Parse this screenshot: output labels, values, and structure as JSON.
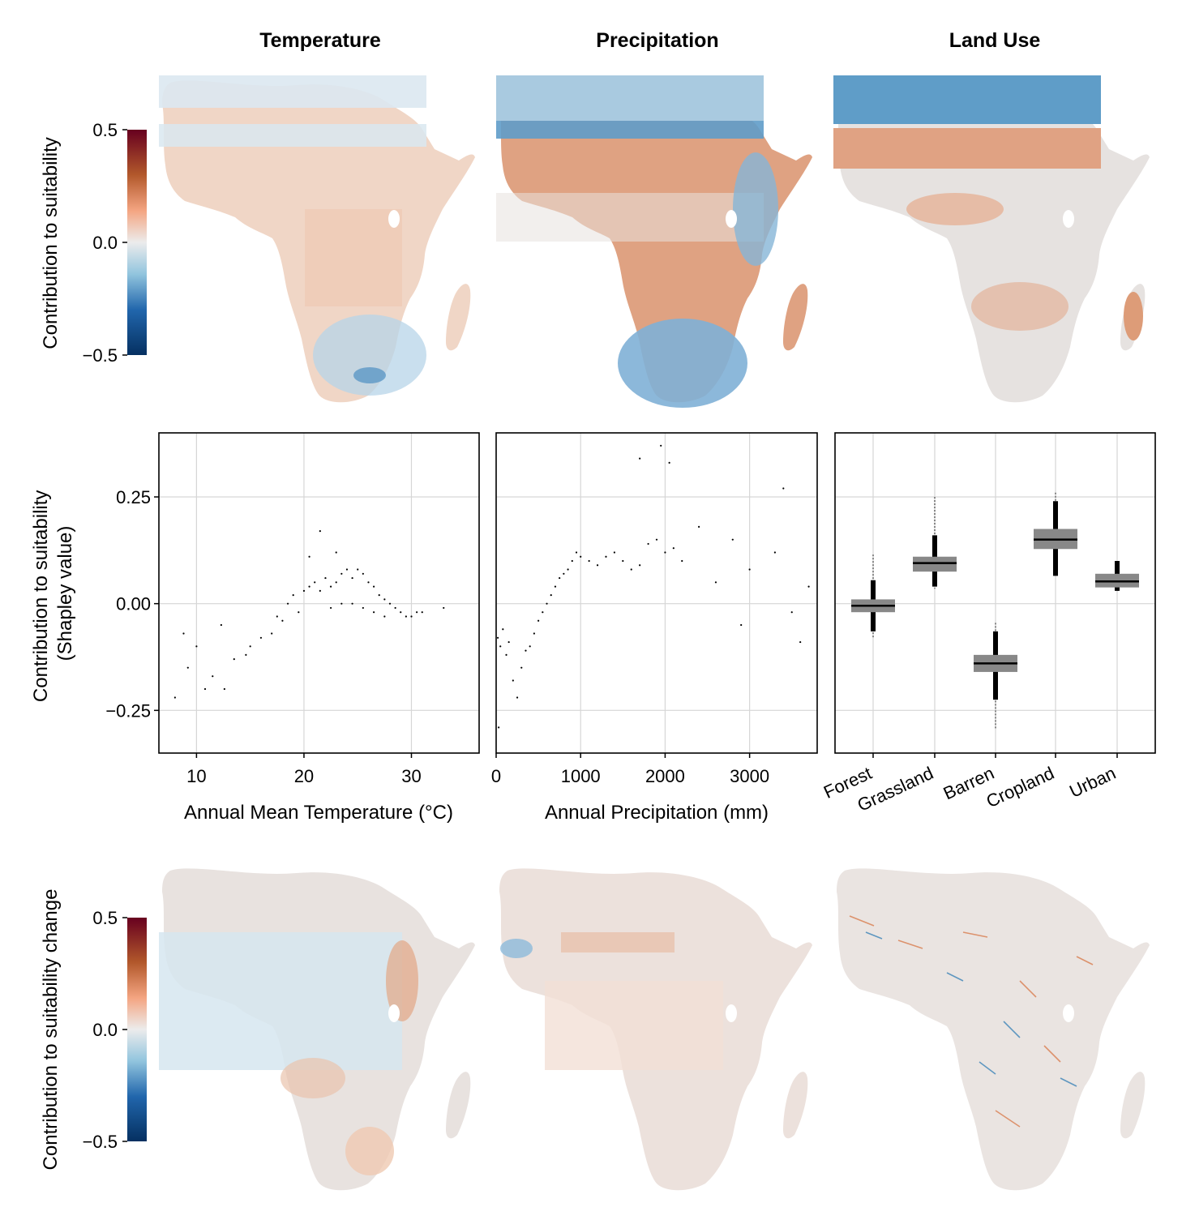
{
  "column_titles": [
    "Temperature",
    "Precipitation",
    "Land Use"
  ],
  "colors": {
    "negative_dark": "#053061",
    "negative_mid": "#4393c3",
    "negative_light": "#d1e5f0",
    "neutral": "#e8e2df",
    "positive_light": "#f2d0bd",
    "positive_mid": "#d6875d",
    "positive_dark": "#67001f",
    "points": "#000000",
    "box_fill": "#888888"
  },
  "colorbars": {
    "top": {
      "label": "Contribution to suitability",
      "ticks": [
        "0.5",
        "0.0",
        "−0.5"
      ],
      "range": [
        -0.5,
        0.5
      ]
    },
    "bottom": {
      "label": "Contribution to suitability change",
      "ticks": [
        "0.5",
        "0.0",
        "−0.5"
      ],
      "range": [
        -0.5,
        0.5
      ]
    }
  },
  "chart_data": [
    {
      "type": "scatter",
      "panel": "temperature",
      "xlabel": "Annual Mean Temperature (°C)",
      "ylabel": "Contribution to suitability\n(Shapley value)",
      "xlim": [
        6.5,
        36.3
      ],
      "ylim": [
        -0.35,
        0.4
      ],
      "xticks": [
        10,
        20,
        30
      ],
      "xtick_labels": [
        "10",
        "20",
        "30"
      ],
      "yticks": [
        0.25,
        0.0,
        -0.25
      ],
      "ytick_labels": [
        "0.25",
        "0.00",
        "−0.25"
      ],
      "grid": true,
      "points": [
        [
          8.0,
          -0.22
        ],
        [
          8.8,
          -0.07
        ],
        [
          9.2,
          -0.15
        ],
        [
          10.0,
          -0.1
        ],
        [
          10.8,
          -0.2
        ],
        [
          11.5,
          -0.17
        ],
        [
          12.3,
          -0.05
        ],
        [
          12.6,
          -0.2
        ],
        [
          13.5,
          -0.13
        ],
        [
          14.6,
          -0.12
        ],
        [
          15.0,
          -0.1
        ],
        [
          16.0,
          -0.08
        ],
        [
          17.0,
          -0.07
        ],
        [
          17.5,
          -0.03
        ],
        [
          18.0,
          -0.04
        ],
        [
          18.5,
          0.0
        ],
        [
          19.0,
          0.02
        ],
        [
          19.5,
          -0.02
        ],
        [
          20.0,
          0.03
        ],
        [
          20.5,
          0.04
        ],
        [
          21.0,
          0.05
        ],
        [
          21.5,
          0.03
        ],
        [
          22.0,
          0.06
        ],
        [
          22.5,
          0.04
        ],
        [
          23.0,
          0.05
        ],
        [
          23.5,
          0.07
        ],
        [
          24.0,
          0.08
        ],
        [
          24.5,
          0.06
        ],
        [
          25.0,
          0.08
        ],
        [
          25.5,
          0.07
        ],
        [
          26.0,
          0.05
        ],
        [
          26.5,
          0.04
        ],
        [
          27.0,
          0.02
        ],
        [
          27.5,
          0.01
        ],
        [
          28.0,
          0.0
        ],
        [
          28.5,
          -0.01
        ],
        [
          29.0,
          -0.02
        ],
        [
          29.5,
          -0.03
        ],
        [
          30.0,
          -0.03
        ],
        [
          30.5,
          -0.02
        ],
        [
          31.0,
          -0.02
        ],
        [
          22.5,
          -0.01
        ],
        [
          23.5,
          0.0
        ],
        [
          24.5,
          0.0
        ],
        [
          25.5,
          -0.01
        ],
        [
          26.5,
          -0.02
        ],
        [
          27.5,
          -0.03
        ],
        [
          33.0,
          -0.01
        ],
        [
          21.5,
          0.17
        ],
        [
          23.0,
          0.12
        ],
        [
          20.5,
          0.11
        ]
      ]
    },
    {
      "type": "scatter",
      "panel": "precipitation",
      "xlabel": "Annual Precipitation (mm)",
      "xlim": [
        0,
        3800
      ],
      "ylim": [
        -0.35,
        0.4
      ],
      "xticks": [
        0,
        1000,
        2000,
        3000
      ],
      "xtick_labels": [
        "0",
        "1000",
        "2000",
        "3000"
      ],
      "grid": true,
      "points": [
        [
          20,
          -0.08
        ],
        [
          50,
          -0.1
        ],
        [
          80,
          -0.06
        ],
        [
          120,
          -0.12
        ],
        [
          150,
          -0.09
        ],
        [
          200,
          -0.18
        ],
        [
          250,
          -0.22
        ],
        [
          300,
          -0.15
        ],
        [
          350,
          -0.11
        ],
        [
          400,
          -0.1
        ],
        [
          450,
          -0.07
        ],
        [
          500,
          -0.04
        ],
        [
          550,
          -0.02
        ],
        [
          600,
          0.0
        ],
        [
          650,
          0.02
        ],
        [
          700,
          0.04
        ],
        [
          750,
          0.06
        ],
        [
          800,
          0.07
        ],
        [
          850,
          0.08
        ],
        [
          900,
          0.1
        ],
        [
          950,
          0.12
        ],
        [
          1000,
          0.11
        ],
        [
          1100,
          0.1
        ],
        [
          1200,
          0.09
        ],
        [
          1300,
          0.11
        ],
        [
          1400,
          0.12
        ],
        [
          1500,
          0.1
        ],
        [
          1600,
          0.08
        ],
        [
          1700,
          0.09
        ],
        [
          1800,
          0.14
        ],
        [
          1900,
          0.15
        ],
        [
          2000,
          0.12
        ],
        [
          2100,
          0.13
        ],
        [
          2200,
          0.1
        ],
        [
          2400,
          0.18
        ],
        [
          2600,
          0.05
        ],
        [
          2800,
          0.15
        ],
        [
          3000,
          0.08
        ],
        [
          3300,
          0.12
        ],
        [
          3500,
          -0.02
        ],
        [
          3700,
          0.04
        ],
        [
          1950,
          0.37
        ],
        [
          1700,
          0.34
        ],
        [
          2050,
          0.33
        ],
        [
          3400,
          0.27
        ],
        [
          3600,
          -0.09
        ],
        [
          2900,
          -0.05
        ],
        [
          30,
          -0.29
        ]
      ]
    },
    {
      "type": "box",
      "panel": "land_use",
      "categories": [
        "Forest",
        "Grassland",
        "Barren",
        "Cropland",
        "Urban"
      ],
      "ylim": [
        -0.35,
        0.4
      ],
      "boxes": [
        {
          "median": -0.005,
          "q1": -0.02,
          "q3": 0.01,
          "whisker_low": -0.065,
          "whisker_high": 0.055,
          "outlier_low": -0.08,
          "outlier_high": 0.115
        },
        {
          "median": 0.095,
          "q1": 0.075,
          "q3": 0.11,
          "whisker_low": 0.04,
          "whisker_high": 0.16,
          "outlier_low": 0.035,
          "outlier_high": 0.25
        },
        {
          "median": -0.14,
          "q1": -0.16,
          "q3": -0.12,
          "whisker_low": -0.225,
          "whisker_high": -0.065,
          "outlier_low": -0.295,
          "outlier_high": -0.045
        },
        {
          "median": 0.15,
          "q1": 0.128,
          "q3": 0.175,
          "whisker_low": 0.065,
          "whisker_high": 0.24,
          "outlier_low": 0.065,
          "outlier_high": 0.26
        },
        {
          "median": 0.052,
          "q1": 0.038,
          "q3": 0.07,
          "whisker_low": 0.03,
          "whisker_high": 0.1,
          "outlier_low": 0.03,
          "outlier_high": 0.1
        }
      ]
    }
  ]
}
